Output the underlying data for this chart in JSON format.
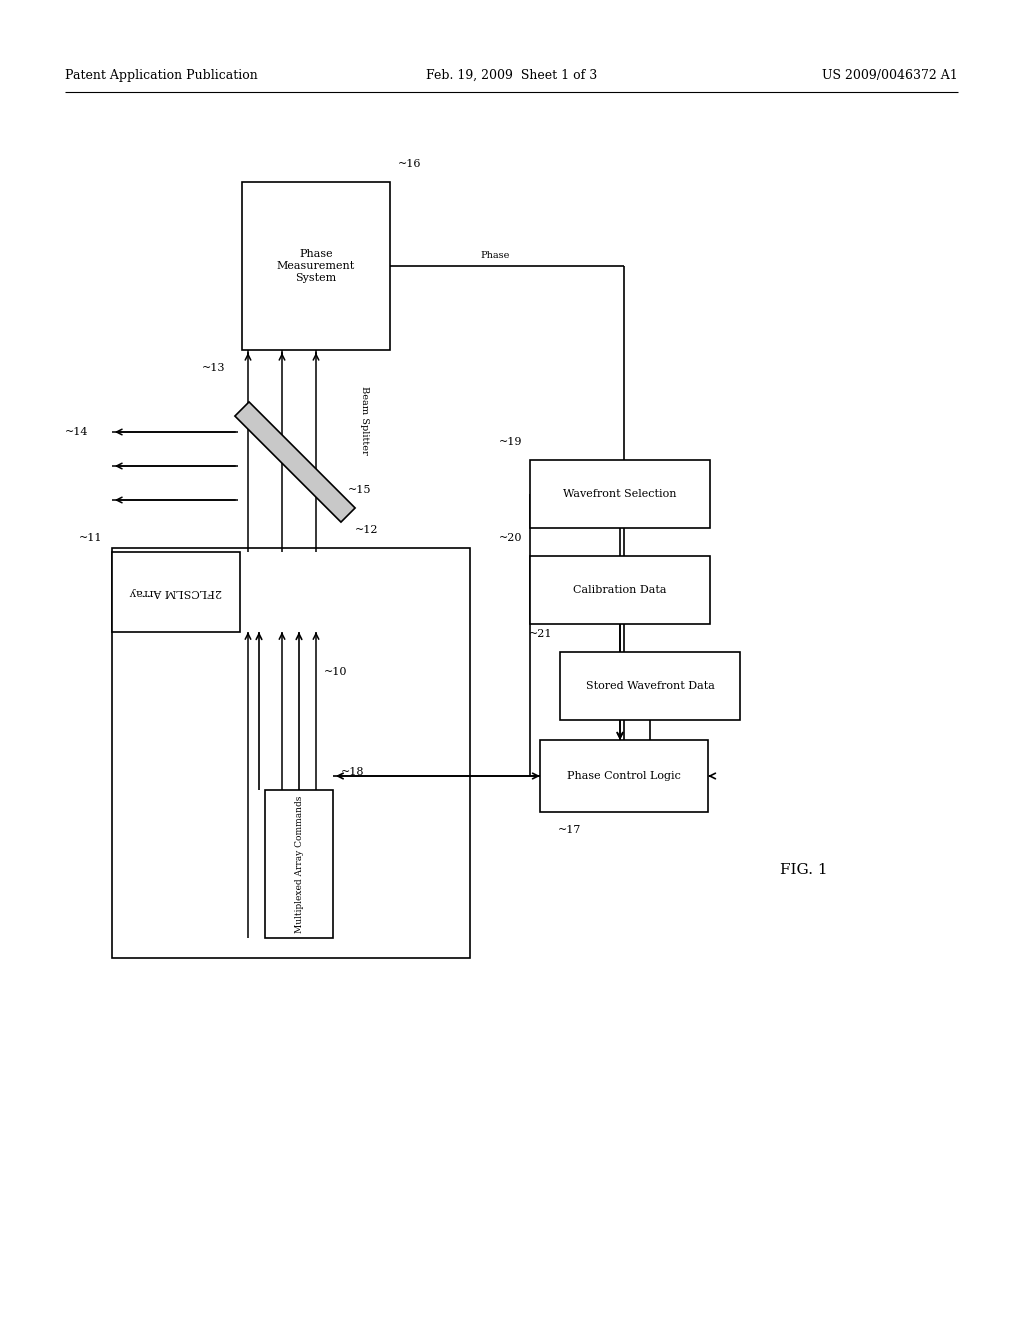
{
  "bg_color": "#ffffff",
  "header_left": "Patent Application Publication",
  "header_mid": "Feb. 19, 2009  Sheet 1 of 3",
  "header_right": "US 2009/0046372 A1",
  "fig_label": "FIG. 1",
  "line_color": "#000000",
  "text_color": "#000000",
  "font_size_header": 9,
  "font_size_label": 8,
  "font_size_num": 8,
  "font_size_fig": 11,
  "boxes": {
    "phase_meas": {
      "label": "Phase\nMeasurement\nSystem",
      "num": "16"
    },
    "slm_array": {
      "label": "2FLCSLM Array",
      "num": "11"
    },
    "wavefront_sel": {
      "label": "Wavefront Selection",
      "num": "19"
    },
    "cal_data": {
      "label": "Calibration Data",
      "num": "20"
    },
    "stored_wf": {
      "label": "Stored Wavefront Data",
      "num": "21"
    },
    "phase_ctrl": {
      "label": "Phase Control Logic",
      "num": "17"
    },
    "mux_cmds": {
      "label": "Multiplexed Array Commands",
      "num": "18"
    }
  },
  "labels": {
    "beam_splitter": "Beam Splitter",
    "beam_splitter_num": "15",
    "phase_text": "Phase",
    "label_10": "10",
    "label_12": "12",
    "label_13": "13",
    "label_14": "14"
  }
}
